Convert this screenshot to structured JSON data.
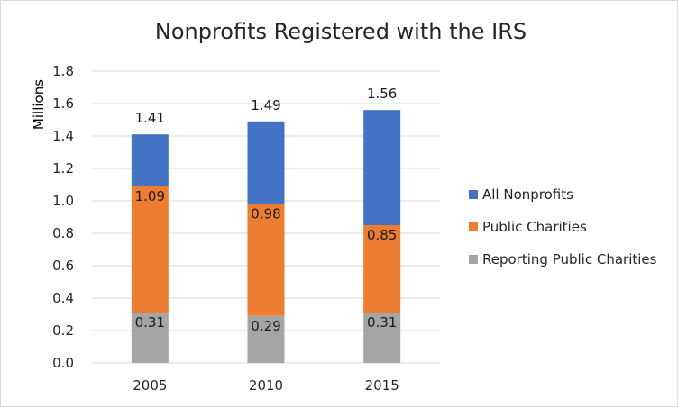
{
  "chart_data": {
    "type": "bar",
    "stacked": true,
    "title": "Nonprofits Registered with the IRS",
    "xlabel": "",
    "ylabel": "Millions",
    "categories": [
      "2005",
      "2010",
      "2015"
    ],
    "ylim": [
      0,
      1.8
    ],
    "yticks": [
      "0.0",
      "0.2",
      "0.4",
      "0.6",
      "0.8",
      "1.0",
      "1.2",
      "1.4",
      "1.6",
      "1.8"
    ],
    "grid": true,
    "legend_position": "right",
    "series": [
      {
        "name": "Reporting Public Charities",
        "values": [
          0.31,
          0.29,
          0.31
        ],
        "labels": [
          "0.31",
          "0.29",
          "0.31"
        ],
        "color": "#a5a5a5"
      },
      {
        "name": "Public Charities",
        "values": [
          0.78,
          0.69,
          0.54
        ],
        "labels": [
          "1.09",
          "0.98",
          "0.85"
        ],
        "color": "#ed7d31"
      },
      {
        "name": "All Nonprofits",
        "values": [
          0.32,
          0.51,
          0.71
        ],
        "labels": [
          "1.41",
          "1.49",
          "1.56"
        ],
        "color": "#4472c4"
      }
    ],
    "legend_order": [
      "All Nonprofits",
      "Public Charities",
      "Reporting Public Charities"
    ]
  }
}
